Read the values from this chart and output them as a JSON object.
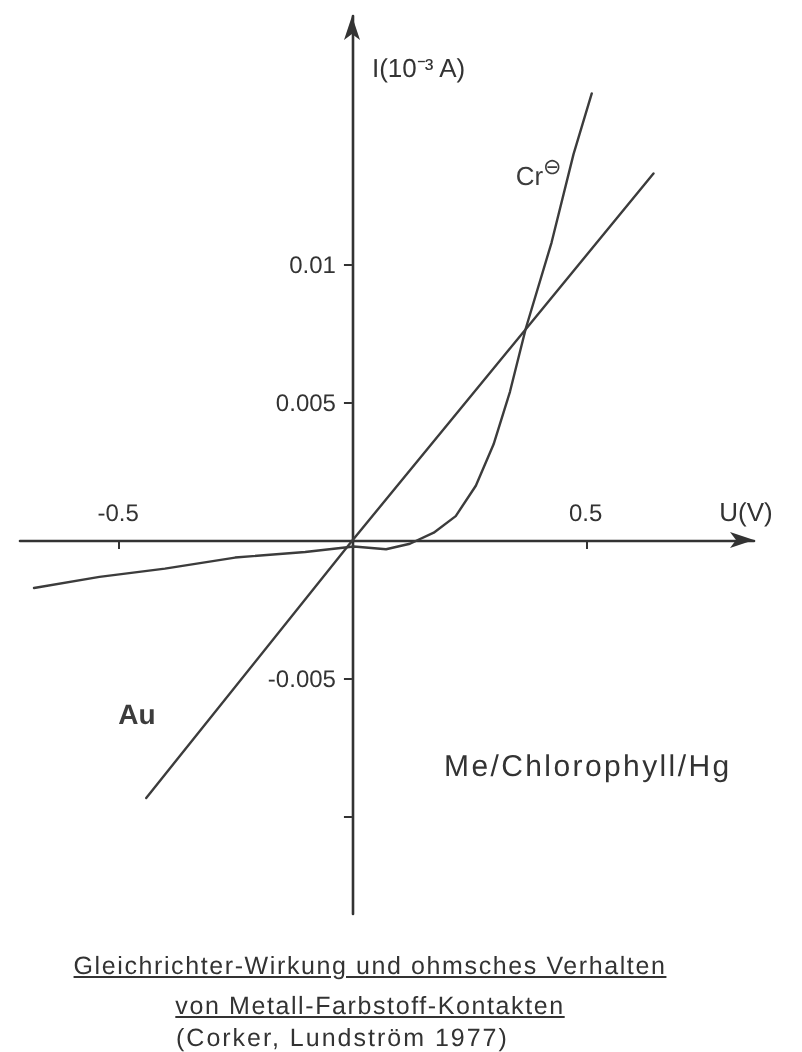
{
  "chart_data": {
    "type": "line",
    "title": "Gleichrichter-Wirkung und ohmsches Verhalten\nvon Metall-Farbstoff-Kontakten",
    "xlabel": "U(V)",
    "ylabel": "I(10⁻³ A)",
    "annotations": [
      "Me/Chlorophyll/Hg",
      "(Corker, Lundström 1977)"
    ],
    "xlim": [
      -0.71,
      0.86
    ],
    "ylim": [
      -0.0135,
      0.019
    ],
    "xticks": [
      -0.5,
      0.5
    ],
    "yticks": [
      0.01,
      0.005,
      -0.005,
      {
        "value": -0.01,
        "label": null
      }
    ],
    "series": [
      {
        "name": "Au",
        "color": "#3c3c3c",
        "x": [
          -0.44,
          0,
          0.645
        ],
        "values": [
          -0.0093,
          0,
          0.0133
        ]
      },
      {
        "name": "Cr$^{⊖}$",
        "color": "#3c3c3c",
        "x": [
          -0.68,
          -0.54,
          -0.4,
          -0.25,
          -0.1,
          0.004,
          0.073,
          0.124,
          0.175,
          0.222,
          0.265,
          0.303,
          0.338,
          0.372,
          0.427,
          0.474,
          0.513
        ],
        "values": [
          -0.0017,
          -0.0013,
          -0.001,
          -0.0006,
          -0.0004,
          -0.0002,
          -0.0003,
          -0.0001,
          0.0003,
          0.0009,
          0.002,
          0.0035,
          0.0054,
          0.0077,
          0.0108,
          0.014,
          0.0162
        ]
      }
    ]
  }
}
